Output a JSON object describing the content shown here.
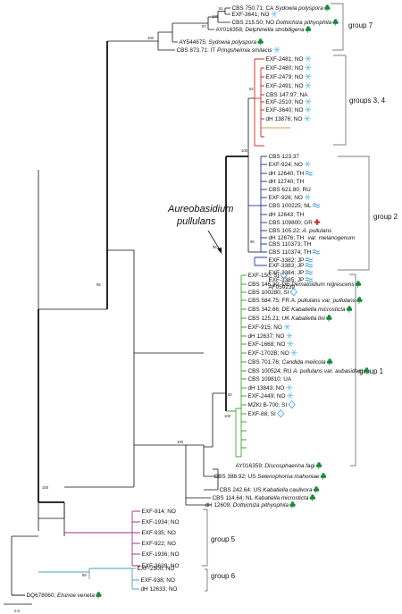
{
  "colors": {
    "black": "#111111",
    "red": "#cc2b1d",
    "green": "#43a33a",
    "purple": "#a23385",
    "cyan": "#4aa3b0",
    "blue": "#1f3f8c",
    "orange": "#d89b3c",
    "snow": "#5bbde6",
    "leaf": "#1b8a3a",
    "wave": "#1f8fd6"
  },
  "species_title": {
    "line1": "Aureobasidium",
    "line2": "pullulans"
  },
  "scale_bar": {
    "label": "0.5"
  },
  "groups": {
    "g7": "group 7",
    "g34": "groups 3, 4",
    "g2": "group 2",
    "g1": "group 1",
    "g5": "group 5",
    "g6": "group 6"
  },
  "bootstraps": {
    "b91": "91",
    "b100a": "100",
    "b97": "97",
    "b100b": "100",
    "b52": "52",
    "b100c": "100",
    "b99": "99",
    "b95": "95",
    "b82": "82",
    "b100d": "100",
    "b95b": "95",
    "b100e": "100",
    "b100f": "100",
    "b95c": "95"
  },
  "taxa": [
    {
      "text": "CBS 750.71; CA",
      "italic": " Sydowia polyspora",
      "icon": "leaf"
    },
    {
      "text": "EXF-3641; NO",
      "icon": "snow"
    },
    {
      "text": "CBS 215.50; NO",
      "italic": " Dothichiza pithyophila",
      "icon": "leaf"
    },
    {
      "text": "AY016358;",
      "italic": " Delphinella strobiligena",
      "icon": "leaf"
    },
    {
      "text": "AY544675;",
      "italic": " Sydowia polyspora",
      "icon": "leaf"
    },
    {
      "text": "CBS 873.71; IT",
      "italic": " Pringsheimia smilacis",
      "icon": "snow"
    },
    {
      "text": "EXF-2481; NO",
      "icon": "snow"
    },
    {
      "text": "EXF-2480; NO",
      "icon": "snow"
    },
    {
      "text": "EXF-2479; NO",
      "icon": "snow"
    },
    {
      "text": "EXF-2491; NO",
      "icon": "snow"
    },
    {
      "text": "CBS 147.97; NA"
    },
    {
      "text": "EXF-2510; NO",
      "icon": "snow"
    },
    {
      "text": "EXF-3640; NO",
      "icon": "snow"
    },
    {
      "text": "dH 13876; NO",
      "icon": "snow"
    },
    {
      "text": "CBS 123.37"
    },
    {
      "text": "EXF-924; NO",
      "icon": "snow"
    },
    {
      "text": "dH 12640; TH",
      "icon": "wave"
    },
    {
      "text": "dH 12740; TH"
    },
    {
      "text": "CBS 621.80; RU"
    },
    {
      "text": "EXF-926; NO",
      "icon": "snow"
    },
    {
      "text": "CBS 100225; NL",
      "icon": "wave"
    },
    {
      "text": "dH 12643; TH"
    },
    {
      "text": "CBS 109800; GR",
      "icon": "cross"
    },
    {
      "text": "CBS 105.22;",
      "italic": " A. pullulans"
    },
    {
      "text": "",
      "italic": "var. melanogenum"
    },
    {
      "text": "dH 12676; TH"
    },
    {
      "text": "CBS 110373; TH"
    },
    {
      "text": "CBS 110374; TH",
      "icon": "wave"
    },
    {
      "text": "EXF-3382; JP",
      "icon": "wave"
    },
    {
      "text": "EXF-3383; JP",
      "icon": "wave"
    },
    {
      "text": "EXF-3384; JP",
      "icon": "wave"
    },
    {
      "text": "EXF-3385; JP",
      "icon": "wave"
    },
    {
      "text": "AF050239"
    },
    {
      "text": "EXF-150; SI",
      "icon": "diamond"
    },
    {
      "text": "CBS 146.30; DE",
      "italic": " Dematoidium nigrescens",
      "icon": "leaf"
    },
    {
      "text": "CBS 100280; SI",
      "icon": "diamond"
    },
    {
      "text": "CBS 584.75; FR",
      "italic": " A. pullulans var. pullulans",
      "icon": "leaf"
    },
    {
      "text": "CBS 342.66; DE",
      "italic": " Kabatiella microsticta",
      "icon": "leaf"
    },
    {
      "text": "CBS 125.21; UK",
      "italic": " Kabatiella lini",
      "icon": "leaf"
    },
    {
      "text": "EXF-915; NO",
      "icon": "snow"
    },
    {
      "text": "dH 12637; NO",
      "icon": "snow"
    },
    {
      "text": "EXF-1668; NO",
      "icon": "snow"
    },
    {
      "text": "EXF-1702B; NO",
      "icon": "snow"
    },
    {
      "text": "CBS 701.76;",
      "italic": " Candida melicola",
      "icon": "leaf"
    },
    {
      "text": "CBS 100524; RU",
      "italic": " A. pullulans var. aubasidani",
      "icon": "leaf"
    },
    {
      "text": "CBS 109810; UA"
    },
    {
      "text": "dH 13843; NO",
      "icon": "snow"
    },
    {
      "text": "EXF-2449; NO",
      "icon": "snow"
    },
    {
      "text": "MZKI B-700; SI",
      "icon": "diamond"
    },
    {
      "text": "EXF-88; SI",
      "icon": "diamond"
    },
    {
      "text": "AY016359;",
      "italic": " Discosphaerina fagi",
      "icon": "leaf"
    },
    {
      "text": "CBS 388.92; US",
      "italic": " Selenophoma mahoniae",
      "icon": "leaf"
    },
    {
      "text": "CBS 242.64; US",
      "italic": " Kabatiella caulivora",
      "icon": "leaf"
    },
    {
      "text": "CBS 114.64; NL",
      "italic": " Kabatiella microsticta",
      "icon": "leaf"
    },
    {
      "text": "dH 12609;",
      "italic": " Dothichiza pithyophila",
      "icon": "leaf"
    },
    {
      "text": "EXF-914; NO"
    },
    {
      "text": "EXF-1934; NO"
    },
    {
      "text": "EXF-935; NO"
    },
    {
      "text": "EXF-922; NO"
    },
    {
      "text": "EXF-1936; NO"
    },
    {
      "text": "EXF-3639; NO"
    },
    {
      "text": "EXF-2500; NO"
    },
    {
      "text": "EXF-938; NO"
    },
    {
      "text": "dH 12633; NO"
    },
    {
      "text": "DQ678060;",
      "italic": " Elsinoe veneta",
      "icon": "leaf"
    }
  ]
}
